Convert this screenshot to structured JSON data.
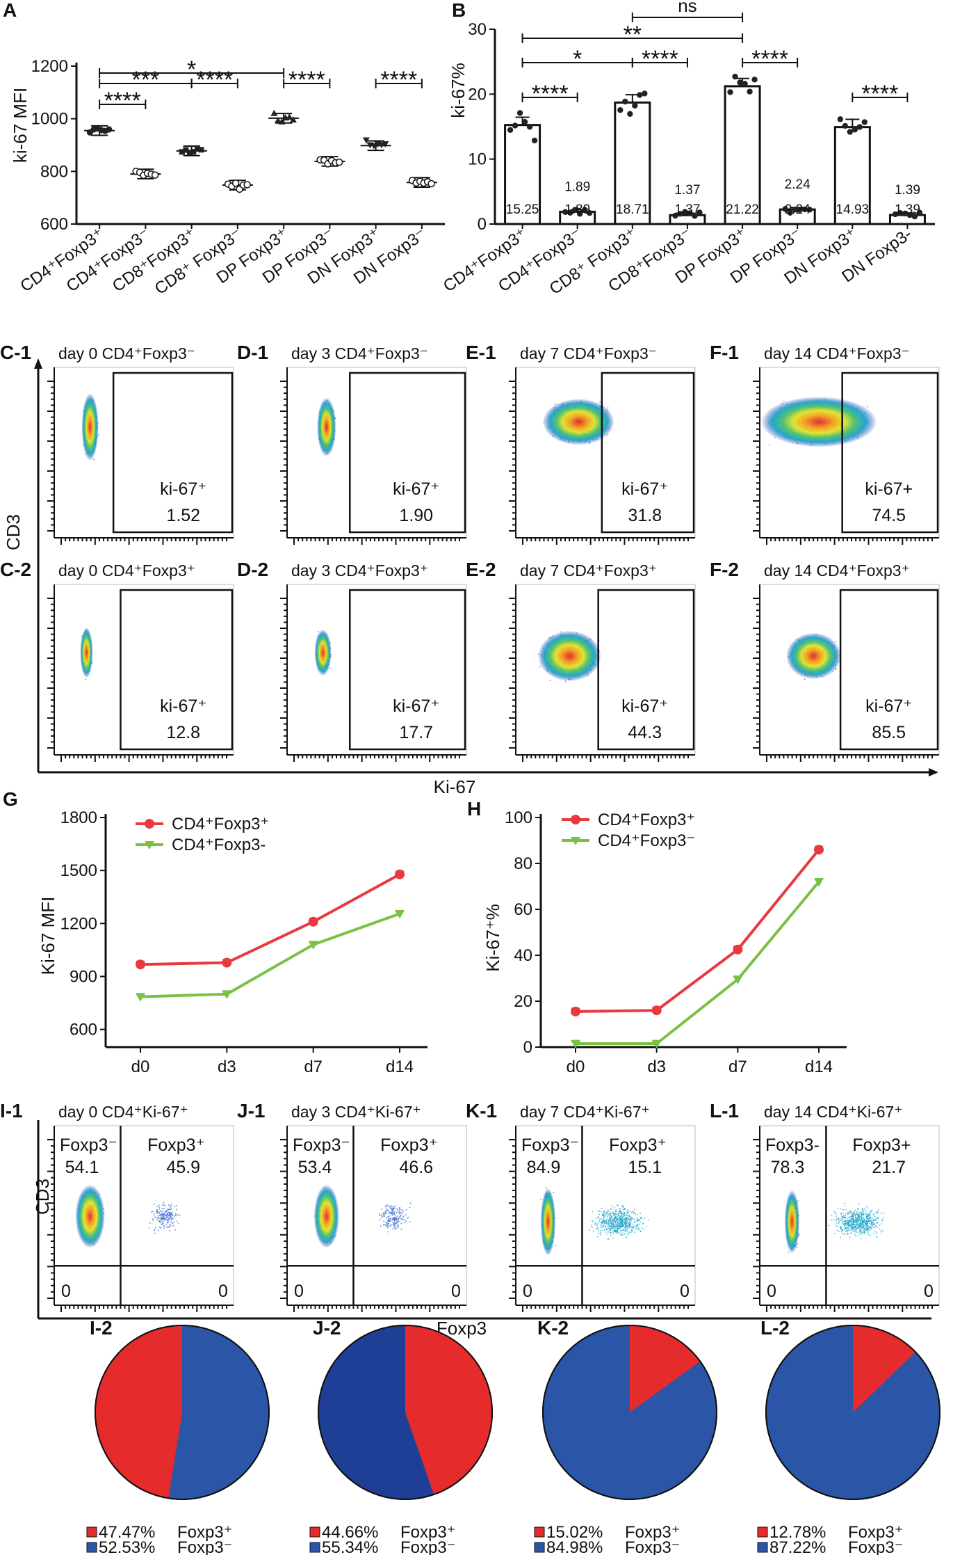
{
  "colors": {
    "red": "#e8393f",
    "green": "#7ac143",
    "pie_red": "#e62b2d",
    "pie_blue": "#2b56a8",
    "pie_blue_dark": "#1f3f96",
    "bar": "#ffffff",
    "ink": "#111111"
  },
  "panels": {
    "A": "A",
    "B": "B",
    "G": "G",
    "H": "H",
    "C1": "C-1",
    "C2": "C-2",
    "D1": "D-1",
    "D2": "D-2",
    "E1": "E-1",
    "E2": "E-2",
    "F1": "F-1",
    "F2": "F-2",
    "I1": "I-1",
    "J1": "J-1",
    "K1": "K-1",
    "L1": "L-1",
    "I2": "I-2",
    "J2": "J-2",
    "K2": "K-2",
    "L2": "L-2"
  },
  "chart_data": [
    {
      "id": "A",
      "type": "scatter",
      "title": "",
      "ylabel": "ki-67 MFI",
      "ylim": [
        600,
        1200
      ],
      "yticks": [
        "600",
        "800",
        "1000",
        "1200"
      ],
      "categories": [
        "CD4⁺Foxp3⁺",
        "CD4⁺Foxp3⁻",
        "CD8⁺Foxp3⁺",
        "CD8⁺ Foxp3⁻",
        "DP Foxp3⁺",
        "DP Foxp3⁻",
        "DN Foxp3⁺",
        "DN Foxp3⁻"
      ],
      "means": [
        955,
        790,
        878,
        748,
        1002,
        838,
        898,
        758
      ],
      "markers": [
        "circle",
        "hexagon",
        "square",
        "hexagon",
        "triangle",
        "hexagon",
        "triangle-down",
        "hexagon"
      ],
      "significance": [
        {
          "from": 0,
          "to": 1,
          "label": "****"
        },
        {
          "from": 0,
          "to": 2,
          "label": "***"
        },
        {
          "from": 2,
          "to": 3,
          "label": "****"
        },
        {
          "from": 0,
          "to": 4,
          "label": "*"
        },
        {
          "from": 4,
          "to": 5,
          "label": "****"
        },
        {
          "from": 6,
          "to": 7,
          "label": "****"
        }
      ]
    },
    {
      "id": "B",
      "type": "bar",
      "title": "",
      "ylabel": "ki-67%",
      "ylim": [
        0,
        30
      ],
      "yticks": [
        "0",
        "10",
        "20",
        "30"
      ],
      "categories": [
        "CD4⁺Foxp3⁺",
        "CD4⁺Foxp3⁻",
        "CD8⁺ Foxp3⁺",
        "CD8⁺Foxp3⁻",
        "DP Foxp3⁺",
        "DP  Foxp3⁻",
        "DN Foxp3⁺",
        "DN Foxp3-"
      ],
      "values": [
        15.25,
        1.89,
        18.71,
        1.37,
        21.22,
        2.24,
        14.93,
        1.39
      ],
      "value_labels": [
        "15.25",
        "1.89",
        "18.71",
        "1.37",
        "21.22",
        "2.24",
        "14.93",
        "1.39"
      ],
      "significance": [
        {
          "from": 0,
          "to": 1,
          "label": "****"
        },
        {
          "from": 2,
          "to": 3,
          "label": "****"
        },
        {
          "from": 4,
          "to": 5,
          "label": "****"
        },
        {
          "from": 6,
          "to": 7,
          "label": "****"
        },
        {
          "from": 0,
          "to": 2,
          "label": "*"
        },
        {
          "from": 0,
          "to": 4,
          "label": "**"
        },
        {
          "from": 2,
          "to": 4,
          "label": "ns"
        }
      ]
    },
    {
      "id": "G",
      "type": "line",
      "ylabel": "Ki-67 MFI",
      "ylim": [
        500,
        1800
      ],
      "yticks": [
        "600",
        "900",
        "1200",
        "1500",
        "1800"
      ],
      "x": [
        "d0",
        "d3",
        "d7",
        "d14"
      ],
      "series": [
        {
          "name": "CD4⁺Foxp3⁺",
          "values": [
            968,
            978,
            1210,
            1478
          ]
        },
        {
          "name": "CD4⁺Foxp3-",
          "values": [
            785,
            800,
            1080,
            1255
          ]
        }
      ]
    },
    {
      "id": "H",
      "type": "line",
      "ylabel": "Ki-67⁺%",
      "ylim": [
        0,
        100
      ],
      "yticks": [
        "0",
        "20",
        "40",
        "60",
        "80",
        "100"
      ],
      "x": [
        "d0",
        "d3",
        "d7",
        "d14"
      ],
      "series": [
        {
          "name": "CD4⁺Foxp3⁺",
          "values": [
            15.5,
            16,
            42.5,
            86
          ]
        },
        {
          "name": "CD4⁺Foxp3⁻",
          "values": [
            1.5,
            1.5,
            29.5,
            72
          ]
        }
      ]
    },
    {
      "id": "I2-L2",
      "type": "pie",
      "pies": [
        {
          "panel": "I-2",
          "red_pct": 47.47,
          "blue_pct": 52.53,
          "red_label": "47.47%",
          "blue_label": "52.53%",
          "red_name": "Foxp3⁺",
          "blue_name": "Foxp3⁻"
        },
        {
          "panel": "J-2",
          "red_pct": 44.66,
          "blue_pct": 55.34,
          "red_label": "44.66%",
          "blue_label": "55.34%",
          "red_name": "Foxp3⁺",
          "blue_name": "Foxp3⁻"
        },
        {
          "panel": "K-2",
          "red_pct": 15.02,
          "blue_pct": 84.98,
          "red_label": "15.02%",
          "blue_label": "84.98%",
          "red_name": "Foxp3⁺",
          "blue_name": "Foxp3⁻"
        },
        {
          "panel": "L-2",
          "red_pct": 12.78,
          "blue_pct": 87.22,
          "red_label": "12.78%",
          "blue_label": "87.22%",
          "red_name": "Foxp3⁺",
          "blue_name": "Foxp3⁻"
        }
      ]
    }
  ],
  "flow_ki67": {
    "xlabel": "Ki-67",
    "ylabel": "CD3",
    "plots": [
      {
        "panel": "C-1",
        "title": "day 0 CD4⁺Foxp3⁻",
        "gate_label": "ki-67⁺",
        "gate_value": "1.52"
      },
      {
        "panel": "D-1",
        "title": "day 3 CD4⁺Foxp3⁻",
        "gate_label": "ki-67⁺",
        "gate_value": "1.90"
      },
      {
        "panel": "E-1",
        "title": "day 7 CD4⁺Foxp3⁻",
        "gate_label": "ki-67⁺",
        "gate_value": "31.8"
      },
      {
        "panel": "F-1",
        "title": "day 14 CD4⁺Foxp3⁻",
        "gate_label": "ki-67+",
        "gate_value": "74.5"
      },
      {
        "panel": "C-2",
        "title": "day 0 CD4⁺Foxp3⁺",
        "gate_label": "ki-67⁺",
        "gate_value": "12.8"
      },
      {
        "panel": "D-2",
        "title": "day 3 CD4⁺Foxp3⁺",
        "gate_label": "ki-67⁺",
        "gate_value": "17.7"
      },
      {
        "panel": "E-2",
        "title": "day 7 CD4⁺Foxp3⁺",
        "gate_label": "ki-67⁺",
        "gate_value": "44.3"
      },
      {
        "panel": "F-2",
        "title": "day 14 CD4⁺Foxp3⁺",
        "gate_label": "ki-67⁺",
        "gate_value": "85.5"
      }
    ]
  },
  "flow_foxp3": {
    "xlabel": "Foxp3",
    "ylabel": "CD3",
    "plots": [
      {
        "panel": "I-1",
        "title": "day 0 CD4⁺Ki-67⁺",
        "neg_label": "Foxp3⁻",
        "neg_value": "54.1",
        "pos_label": "Foxp3⁺",
        "pos_value": "45.9",
        "bl": "0",
        "br": "0"
      },
      {
        "panel": "J-1",
        "title": "day 3 CD4⁺Ki-67⁺",
        "neg_label": "Foxp3⁻",
        "neg_value": "53.4",
        "pos_label": "Foxp3⁺",
        "pos_value": "46.6",
        "bl": "0",
        "br": "0"
      },
      {
        "panel": "K-1",
        "title": "day 7 CD4⁺Ki-67⁺",
        "neg_label": "Foxp3⁻",
        "neg_value": "84.9",
        "pos_label": "Foxp3⁺",
        "pos_value": "15.1",
        "bl": "0",
        "br": "0"
      },
      {
        "panel": "L-1",
        "title": "day 14 CD4⁺Ki-67⁺",
        "neg_label": "Foxp3-",
        "neg_value": "78.3",
        "pos_label": "Foxp3+",
        "pos_value": "21.7",
        "bl": "0",
        "br": "0"
      }
    ]
  }
}
